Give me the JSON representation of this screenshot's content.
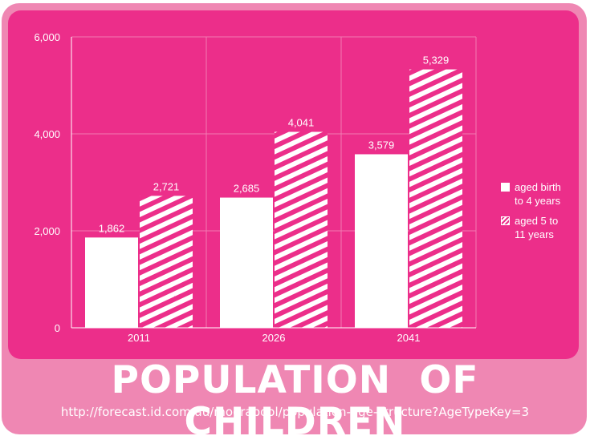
{
  "chart_data": {
    "type": "bar",
    "categories": [
      "2011",
      "2026",
      "2041"
    ],
    "series": [
      {
        "name": "aged birth to 4 years",
        "values": [
          1862,
          2685,
          3579
        ]
      },
      {
        "name": "aged 5 to 11 years",
        "values": [
          2721,
          4041,
          5329
        ]
      }
    ],
    "data_labels": [
      [
        "1,862",
        "2,685",
        "3,579"
      ],
      [
        "2,721",
        "4,041",
        "5,329"
      ]
    ],
    "yticks": [
      "0",
      "2,000",
      "4,000",
      "6,000"
    ],
    "ylim": [
      0,
      6000
    ],
    "grid": true,
    "legend_position": "right",
    "legend": [
      {
        "line1": "aged birth",
        "line2": "to  4 years",
        "style": "solid"
      },
      {
        "line1": "aged 5 to",
        "line2": "11 years",
        "style": "hatched"
      }
    ],
    "colors": {
      "background": "#ec2e8a",
      "bars": "#ffffff",
      "frame": "#ef87b3"
    }
  },
  "footer": {
    "title": "POPULATION OF CHILDREN",
    "url": "http://forecast.id.com.au/moorabool/population-age-structure?AgeTypeKey=3"
  }
}
